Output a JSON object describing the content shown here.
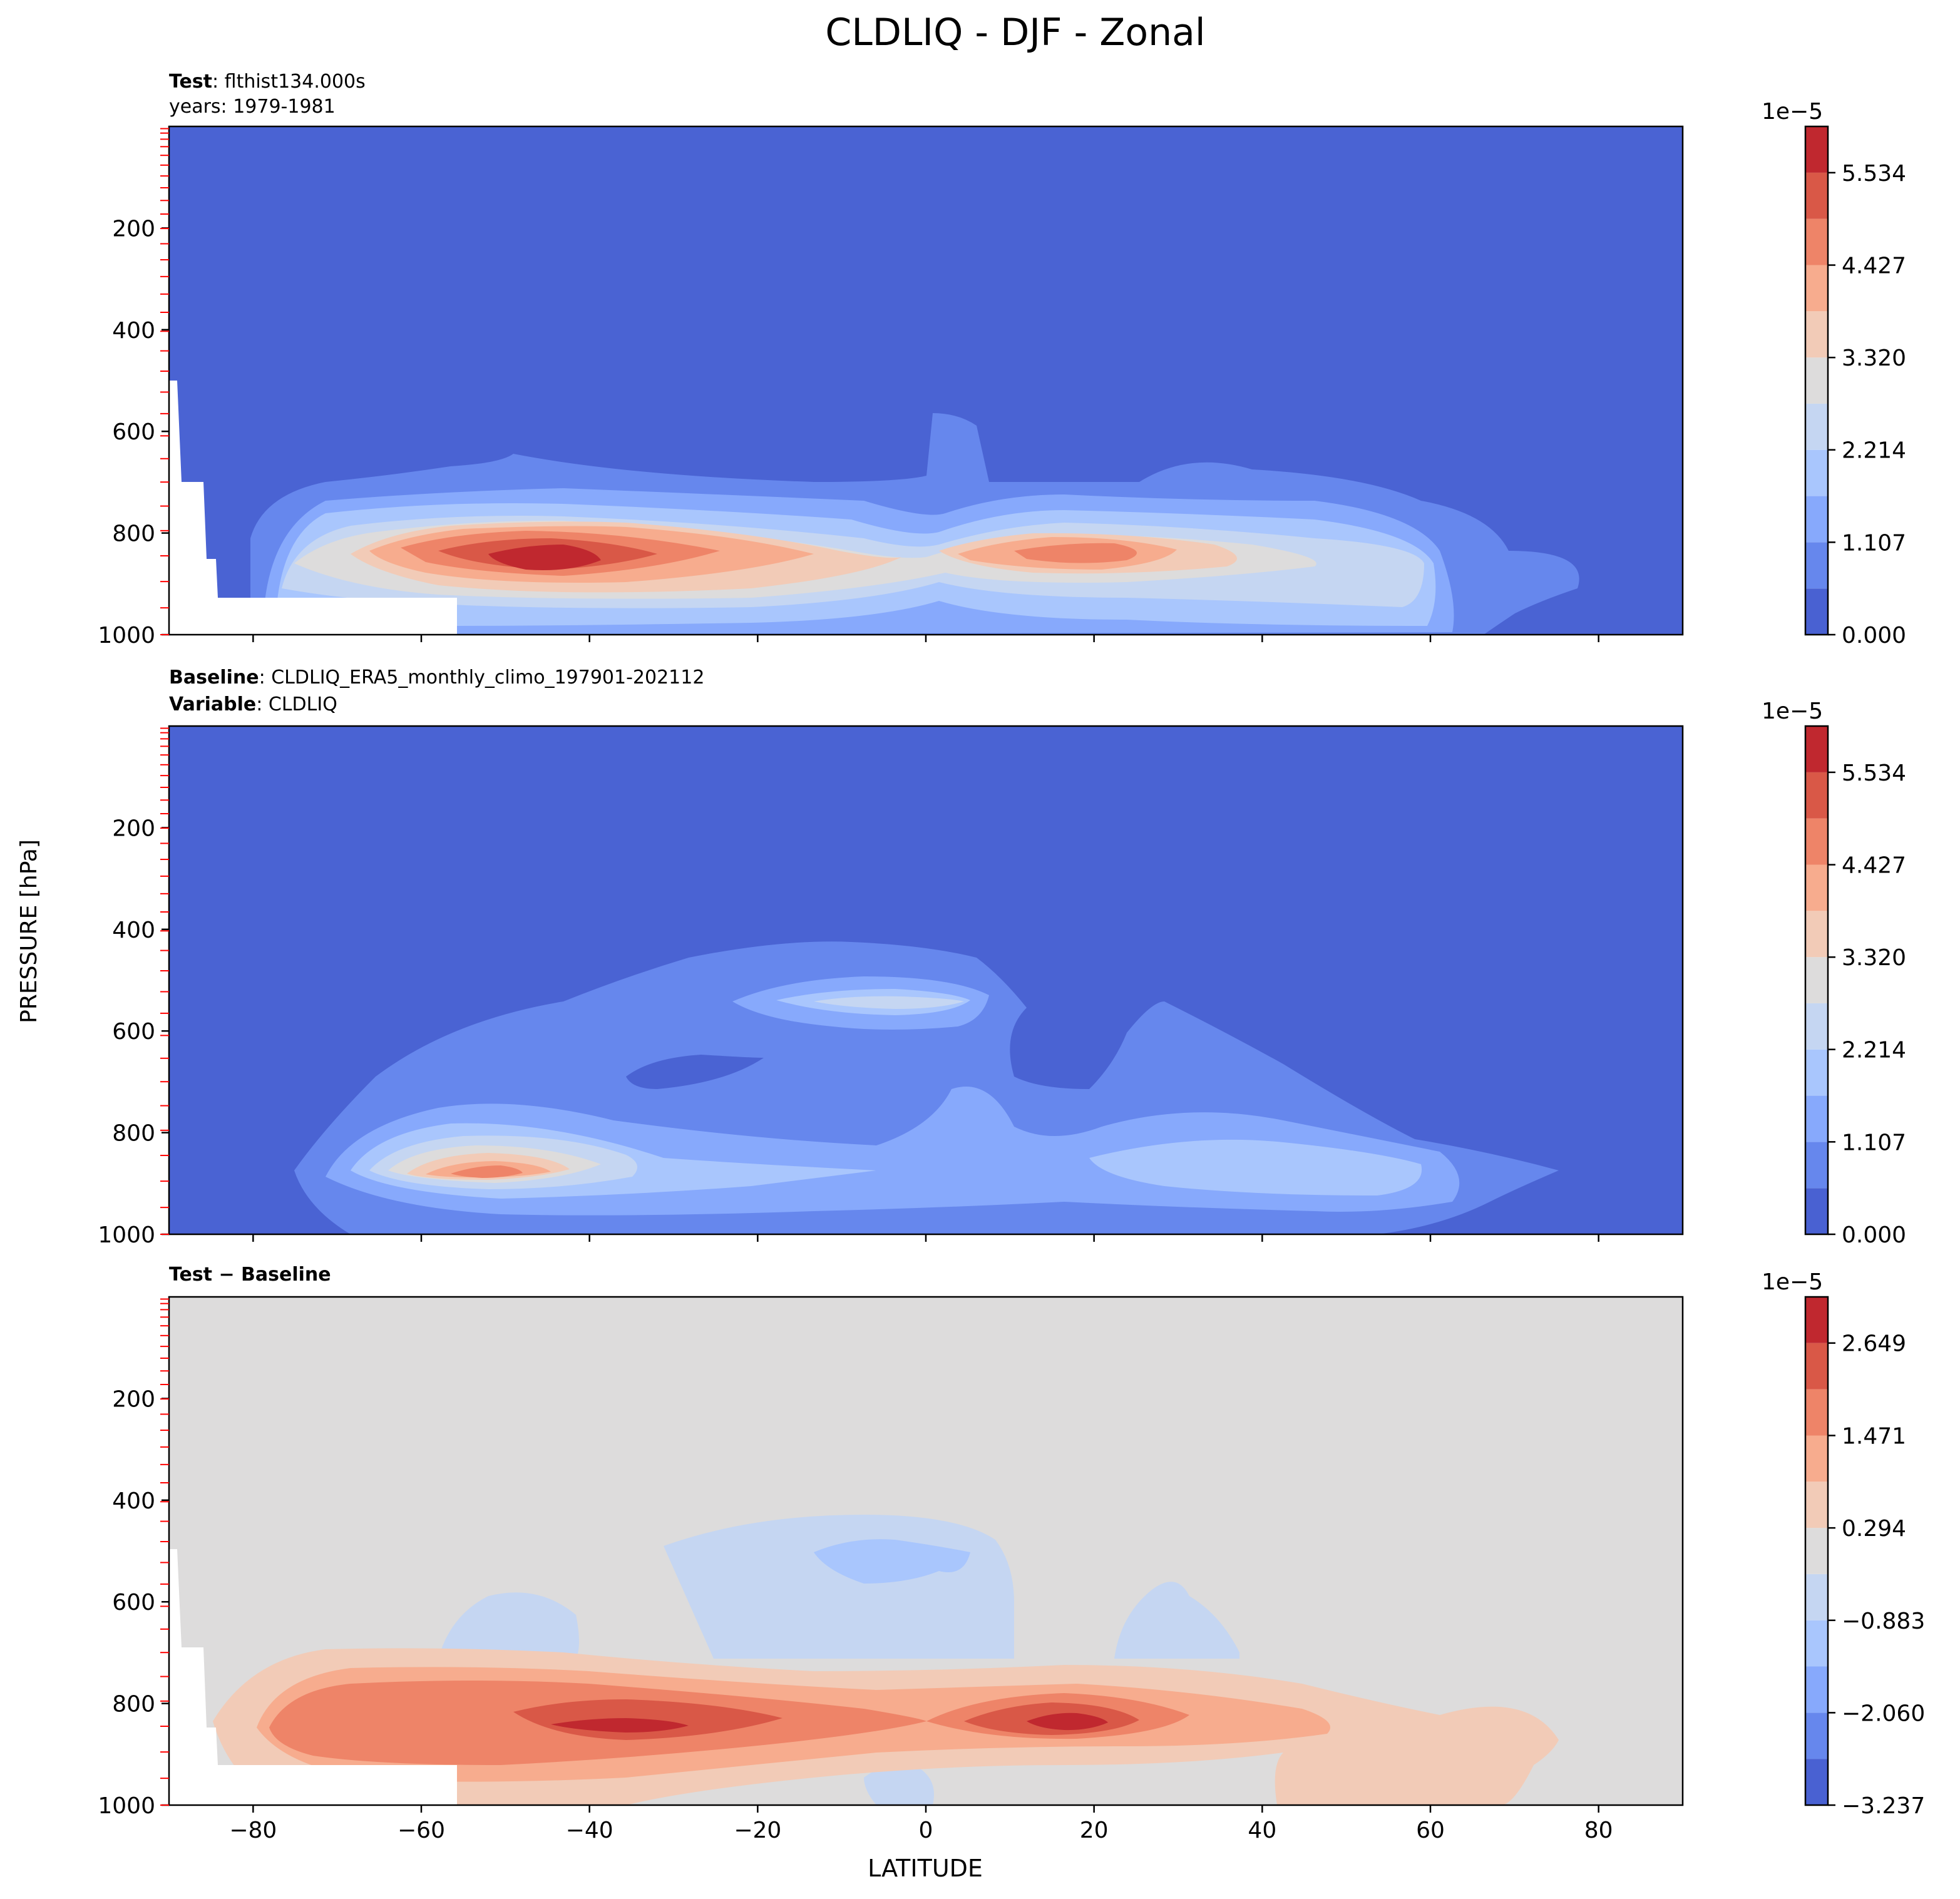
{
  "title": "CLDLIQ - DJF - Zonal",
  "shared_ylabel": "PRESSURE [hPa]",
  "shared_xlabel": "LATITUDE",
  "colors": {
    "coolwarm_12": [
      "#4961d2",
      "#6687ed",
      "#87a9fc",
      "#a9c6fd",
      "#c5d6f2",
      "#dddcdc",
      "#f2cbb7",
      "#f7ac8e",
      "#ee8468",
      "#d95847",
      "#c0282f"
    ],
    "background_test": "#4a63d3",
    "background_diff": "#dddcdc",
    "missing": "#ffffff",
    "minor_tick": "#ff0000"
  },
  "panels": [
    {
      "id": "test",
      "annot_bold_1": "Test",
      "annot_text_1": ": flthist134.000s",
      "annot_line_2": "years: 1979-1981",
      "annot_bold_2": "",
      "annot_text_2": "",
      "colorbar_offset": "1e−5",
      "colorbar_ticks": [
        "0.000",
        "1.107",
        "2.214",
        "3.320",
        "4.427",
        "5.534"
      ]
    },
    {
      "id": "baseline",
      "annot_bold_1": "Baseline",
      "annot_text_1": ": CLDLIQ_ERA5_monthly_climo_197901-202112",
      "annot_line_2": "",
      "annot_bold_2": "Variable",
      "annot_text_2": ": CLDLIQ",
      "colorbar_offset": "1e−5",
      "colorbar_ticks": [
        "0.000",
        "1.107",
        "2.214",
        "3.320",
        "4.427",
        "5.534"
      ]
    },
    {
      "id": "diff",
      "annot_bold_1": "Test − Baseline",
      "annot_text_1": "",
      "annot_line_2": "",
      "annot_bold_2": "",
      "annot_text_2": "",
      "colorbar_offset": "1e−5",
      "colorbar_ticks": [
        "−3.237",
        "−2.060",
        "−0.883",
        "0.294",
        "1.471",
        "2.649"
      ]
    }
  ],
  "chart_data": [
    {
      "type": "heatmap",
      "subtype": "filled-contour",
      "panel": "Test",
      "case": "flthist134.000s",
      "years": "1979-1981",
      "xlim": [
        -90,
        90
      ],
      "ylim": [
        1000,
        0
      ],
      "x_ticks": [
        -80,
        -60,
        -40,
        -20,
        0,
        20,
        40,
        60,
        80
      ],
      "y_ticks": [
        200,
        400,
        600,
        800,
        1000
      ],
      "levels_1e-5": [
        0.0,
        0.553,
        1.107,
        1.66,
        2.214,
        2.767,
        3.32,
        3.874,
        4.427,
        4.981,
        5.534,
        6.088
      ],
      "colorbar_ticks_1e-5": [
        0.0,
        1.107,
        2.214,
        3.32,
        4.427,
        5.534
      ],
      "features": [
        {
          "description": "low-level SH maximum",
          "lat": -45,
          "pressure": 860,
          "level_index": 10
        },
        {
          "description": "low-level NH maximum",
          "lat": 17,
          "pressure": 850,
          "level_index": 8
        },
        {
          "description": "low cloud liquid layer",
          "lat_range": [
            -80,
            75
          ],
          "pressure_range": [
            700,
            1000
          ]
        },
        {
          "description": "masked below surface",
          "lat_range": [
            -90,
            -56
          ],
          "pressure_range": [
            930,
            1000
          ]
        }
      ]
    },
    {
      "type": "heatmap",
      "subtype": "filled-contour",
      "panel": "Baseline",
      "case": "CLDLIQ_ERA5_monthly_climo_197901-202112",
      "variable": "CLDLIQ",
      "xlim": [
        -90,
        90
      ],
      "ylim": [
        1000,
        0
      ],
      "x_ticks": [
        -80,
        -60,
        -40,
        -20,
        0,
        20,
        40,
        60,
        80
      ],
      "y_ticks": [
        200,
        400,
        600,
        800,
        1000
      ],
      "levels_1e-5": [
        0.0,
        0.553,
        1.107,
        1.66,
        2.214,
        2.767,
        3.32,
        3.874,
        4.427,
        4.981,
        5.534,
        6.088
      ],
      "colorbar_ticks_1e-5": [
        0.0,
        1.107,
        2.214,
        3.32,
        4.427,
        5.534
      ],
      "features": [
        {
          "description": "SH low-level maximum",
          "lat": -52,
          "pressure": 900,
          "level_index": 8
        },
        {
          "description": "mid-level maximum",
          "lat": -8,
          "pressure": 545,
          "level_index": 3
        },
        {
          "description": "cloud liquid envelope",
          "lat_range": [
            -75,
            75
          ],
          "pressure_range": [
            440,
            1000
          ]
        }
      ]
    },
    {
      "type": "heatmap",
      "subtype": "filled-contour",
      "panel": "Test − Baseline",
      "xlim": [
        -90,
        90
      ],
      "ylim": [
        1000,
        0
      ],
      "x_ticks": [
        -80,
        -60,
        -40,
        -20,
        0,
        20,
        40,
        60,
        80
      ],
      "y_ticks": [
        200,
        400,
        600,
        800,
        1000
      ],
      "levels_1e-5": [
        -3.237,
        -2.648,
        -2.06,
        -1.471,
        -0.883,
        -0.294,
        0.294,
        0.883,
        1.471,
        2.06,
        2.649,
        3.237
      ],
      "colorbar_ticks_1e-5": [
        -3.237,
        -2.06,
        -0.883,
        0.294,
        1.471,
        2.649
      ],
      "features": [
        {
          "description": "positive difference maximum SH",
          "lat": -40,
          "pressure": 855,
          "value_1e-5": 2.9
        },
        {
          "description": "positive difference maximum NH",
          "lat": 16,
          "pressure": 850,
          "value_1e-5": 2.9
        },
        {
          "description": "weak negative mid-level",
          "lat_range": [
            -35,
            10
          ],
          "pressure_range": [
            420,
            710
          ],
          "value_1e-5": -0.6
        },
        {
          "description": "masked below surface",
          "lat_range": [
            -90,
            -56
          ],
          "pressure_range": [
            930,
            1000
          ]
        }
      ]
    }
  ]
}
